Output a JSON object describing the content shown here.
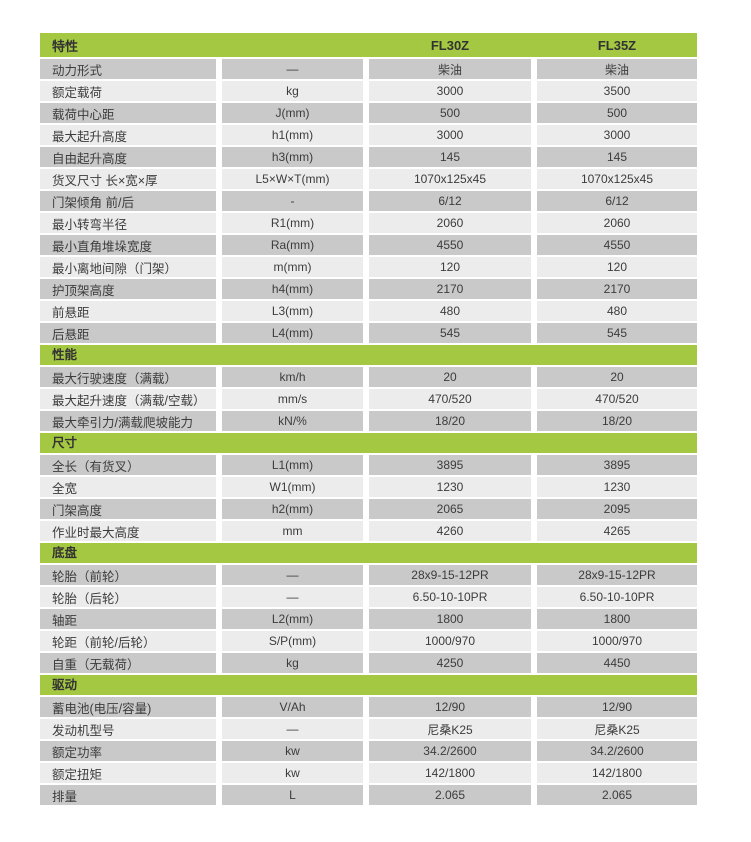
{
  "colors": {
    "green": "#a4c841",
    "row_gray": "#c9c9c9",
    "row_light": "#ececec",
    "text": "#3c3c3c"
  },
  "table": {
    "header": {
      "feature": "特性",
      "unit": "",
      "model1": "FL30Z",
      "model2": "FL35Z"
    },
    "rows": [
      {
        "type": "data",
        "label": "动力形式",
        "unit": "—",
        "fl30z": "柴油",
        "fl35z": "柴油"
      },
      {
        "type": "data",
        "label": "额定载荷",
        "unit": "kg",
        "fl30z": "3000",
        "fl35z": "3500"
      },
      {
        "type": "data",
        "label": "载荷中心距",
        "unit": "J(mm)",
        "fl30z": "500",
        "fl35z": "500"
      },
      {
        "type": "data",
        "label": "最大起升高度",
        "unit": "h1(mm)",
        "fl30z": "3000",
        "fl35z": "3000"
      },
      {
        "type": "data",
        "label": "自由起升高度",
        "unit": "h3(mm)",
        "fl30z": "145",
        "fl35z": "145"
      },
      {
        "type": "data",
        "label": "货叉尺寸 长×宽×厚",
        "unit": "L5×W×T(mm)",
        "fl30z": "1070x125x45",
        "fl35z": "1070x125x45"
      },
      {
        "type": "data",
        "label": "门架倾角 前/后",
        "unit": "-",
        "fl30z": "6/12",
        "fl35z": "6/12"
      },
      {
        "type": "data",
        "label": "最小转弯半径",
        "unit": "R1(mm)",
        "fl30z": "2060",
        "fl35z": "2060"
      },
      {
        "type": "data",
        "label": "最小直角堆垛宽度",
        "unit": "Ra(mm)",
        "fl30z": "4550",
        "fl35z": "4550"
      },
      {
        "type": "data",
        "label": "最小离地间隙（门架）",
        "unit": "m(mm)",
        "fl30z": "120",
        "fl35z": "120"
      },
      {
        "type": "data",
        "label": "护顶架高度",
        "unit": "h4(mm)",
        "fl30z": "2170",
        "fl35z": "2170"
      },
      {
        "type": "data",
        "label": "前悬距",
        "unit": "L3(mm)",
        "fl30z": "480",
        "fl35z": "480"
      },
      {
        "type": "data",
        "label": "后悬距",
        "unit": "L4(mm)",
        "fl30z": "545",
        "fl35z": "545"
      },
      {
        "type": "section",
        "label": "性能"
      },
      {
        "type": "data",
        "label": "最大行驶速度（满载）",
        "unit": "km/h",
        "fl30z": "20",
        "fl35z": "20"
      },
      {
        "type": "data",
        "label": "最大起升速度（满载/空载）",
        "unit": "mm/s",
        "fl30z": "470/520",
        "fl35z": "470/520"
      },
      {
        "type": "data",
        "label": "最大牵引力/满载爬坡能力",
        "unit": "kN/%",
        "fl30z": "18/20",
        "fl35z": "18/20"
      },
      {
        "type": "section",
        "label": "尺寸"
      },
      {
        "type": "data",
        "label": "全长（有货叉）",
        "unit": "L1(mm)",
        "fl30z": "3895",
        "fl35z": "3895"
      },
      {
        "type": "data",
        "label": "全宽",
        "unit": "W1(mm)",
        "fl30z": "1230",
        "fl35z": "1230"
      },
      {
        "type": "data",
        "label": "门架高度",
        "unit": "h2(mm)",
        "fl30z": "2065",
        "fl35z": "2095"
      },
      {
        "type": "data",
        "label": "作业时最大高度",
        "unit": "mm",
        "fl30z": "4260",
        "fl35z": "4265"
      },
      {
        "type": "section",
        "label": "底盘"
      },
      {
        "type": "data",
        "label": "轮胎（前轮）",
        "unit": "—",
        "fl30z": "28x9-15-12PR",
        "fl35z": "28x9-15-12PR"
      },
      {
        "type": "data",
        "label": "轮胎（后轮）",
        "unit": "—",
        "fl30z": "6.50-10-10PR",
        "fl35z": "6.50-10-10PR"
      },
      {
        "type": "data",
        "label": "轴距",
        "unit": "L2(mm)",
        "fl30z": "1800",
        "fl35z": "1800"
      },
      {
        "type": "data",
        "label": "轮距（前轮/后轮）",
        "unit": "S/P(mm)",
        "fl30z": "1000/970",
        "fl35z": "1000/970"
      },
      {
        "type": "data",
        "label": "自重（无载荷）",
        "unit": "kg",
        "fl30z": "4250",
        "fl35z": "4450"
      },
      {
        "type": "section",
        "label": "驱动"
      },
      {
        "type": "data",
        "label": "蓄电池(电压/容量)",
        "unit": "V/Ah",
        "fl30z": "12/90",
        "fl35z": "12/90"
      },
      {
        "type": "data",
        "label": "发动机型号",
        "unit": "—",
        "fl30z": "尼桑K25",
        "fl35z": "尼桑K25"
      },
      {
        "type": "data",
        "label": "额定功率",
        "unit": "kw",
        "fl30z": "34.2/2600",
        "fl35z": "34.2/2600"
      },
      {
        "type": "data",
        "label": "额定扭矩",
        "unit": "kw",
        "fl30z": "142/1800",
        "fl35z": "142/1800"
      },
      {
        "type": "data",
        "label": "排量",
        "unit": "L",
        "fl30z": "2.065",
        "fl35z": "2.065"
      }
    ]
  }
}
